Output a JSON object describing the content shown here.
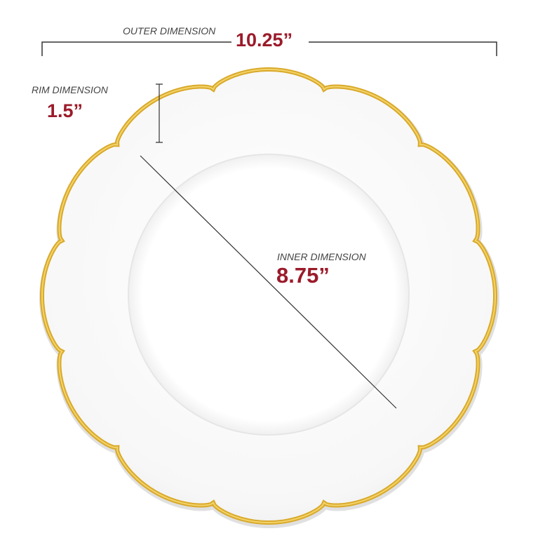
{
  "outer": {
    "label": "OUTER DIMENSION",
    "value": "10.25”"
  },
  "rim": {
    "label": "RIM DIMENSION",
    "value": "1.5”"
  },
  "inner": {
    "label": "INNER DIMENSION",
    "value": "8.75”"
  }
}
